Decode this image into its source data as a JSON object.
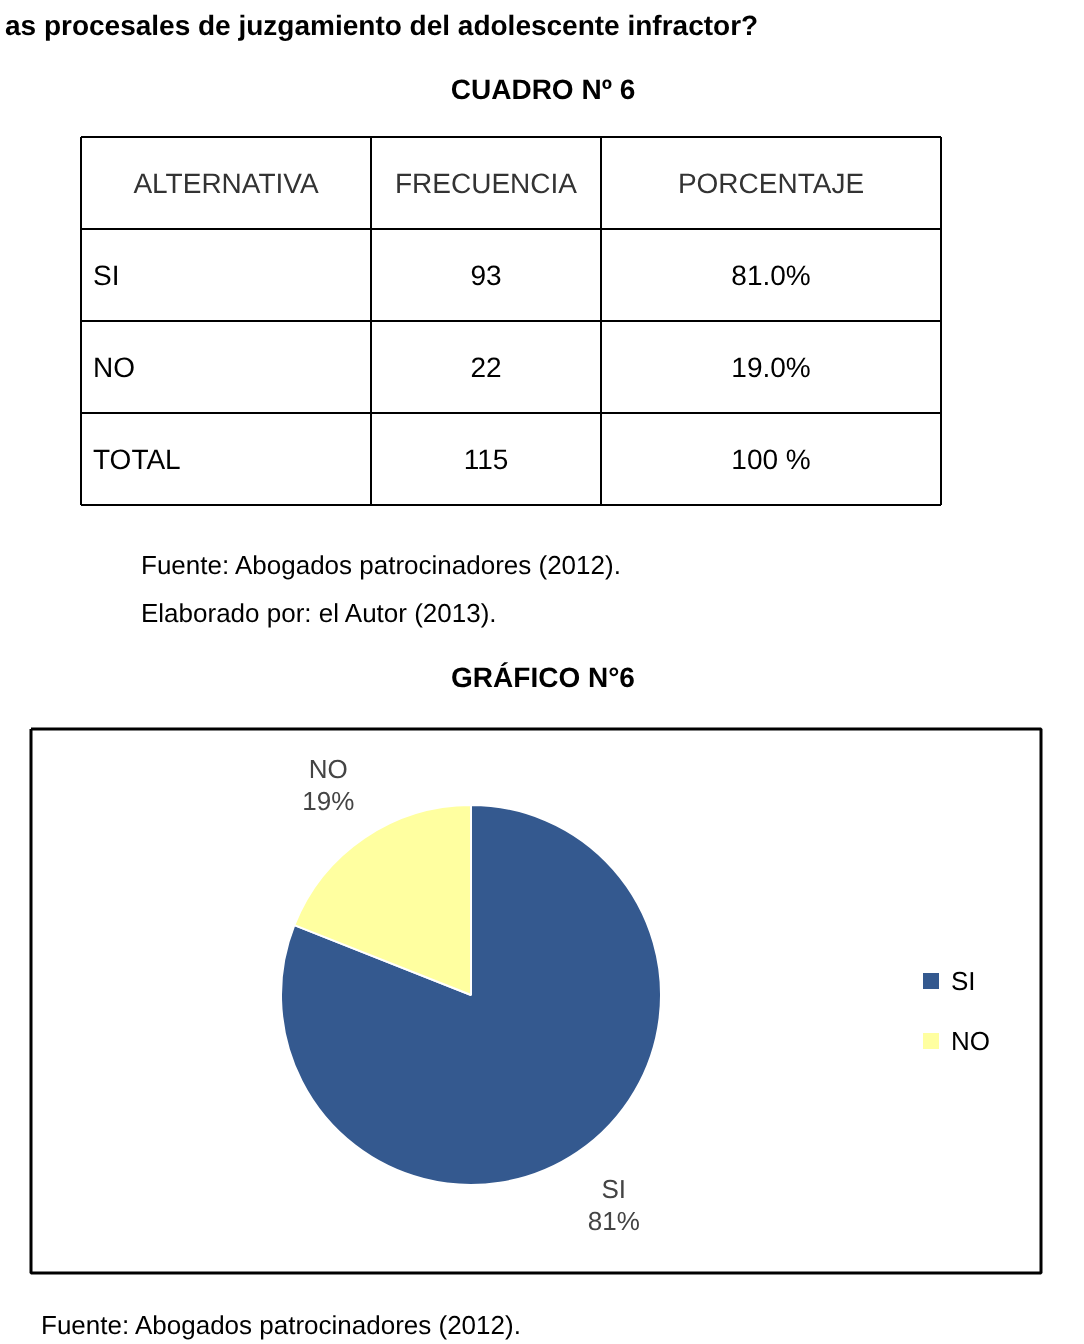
{
  "chart_data": {
    "type": "pie",
    "title": "GRÁFICO N°6",
    "categories": [
      "SI",
      "NO"
    ],
    "values": [
      81,
      19
    ],
    "colors": [
      "#34598f",
      "#ffffa0"
    ],
    "value_labels": [
      "81%",
      "19%"
    ],
    "legend": "right",
    "annotations": [
      "as procesales de juzgamiento del adolescente infractor?",
      "CUADRO Nº 6",
      "ALTERNATIVA\tFRECUENCIA\tPORCENTAJE",
      "SI\t93\t81.0%",
      "NO\t22\t19.0%",
      "TOTAL\t115\t100 %",
      "Fuente: Abogados patrocinadores (2012).",
      "Elaborado por: el Autor (2013).",
      "Fuente: Abogados patrocinadores (2012)."
    ]
  }
}
